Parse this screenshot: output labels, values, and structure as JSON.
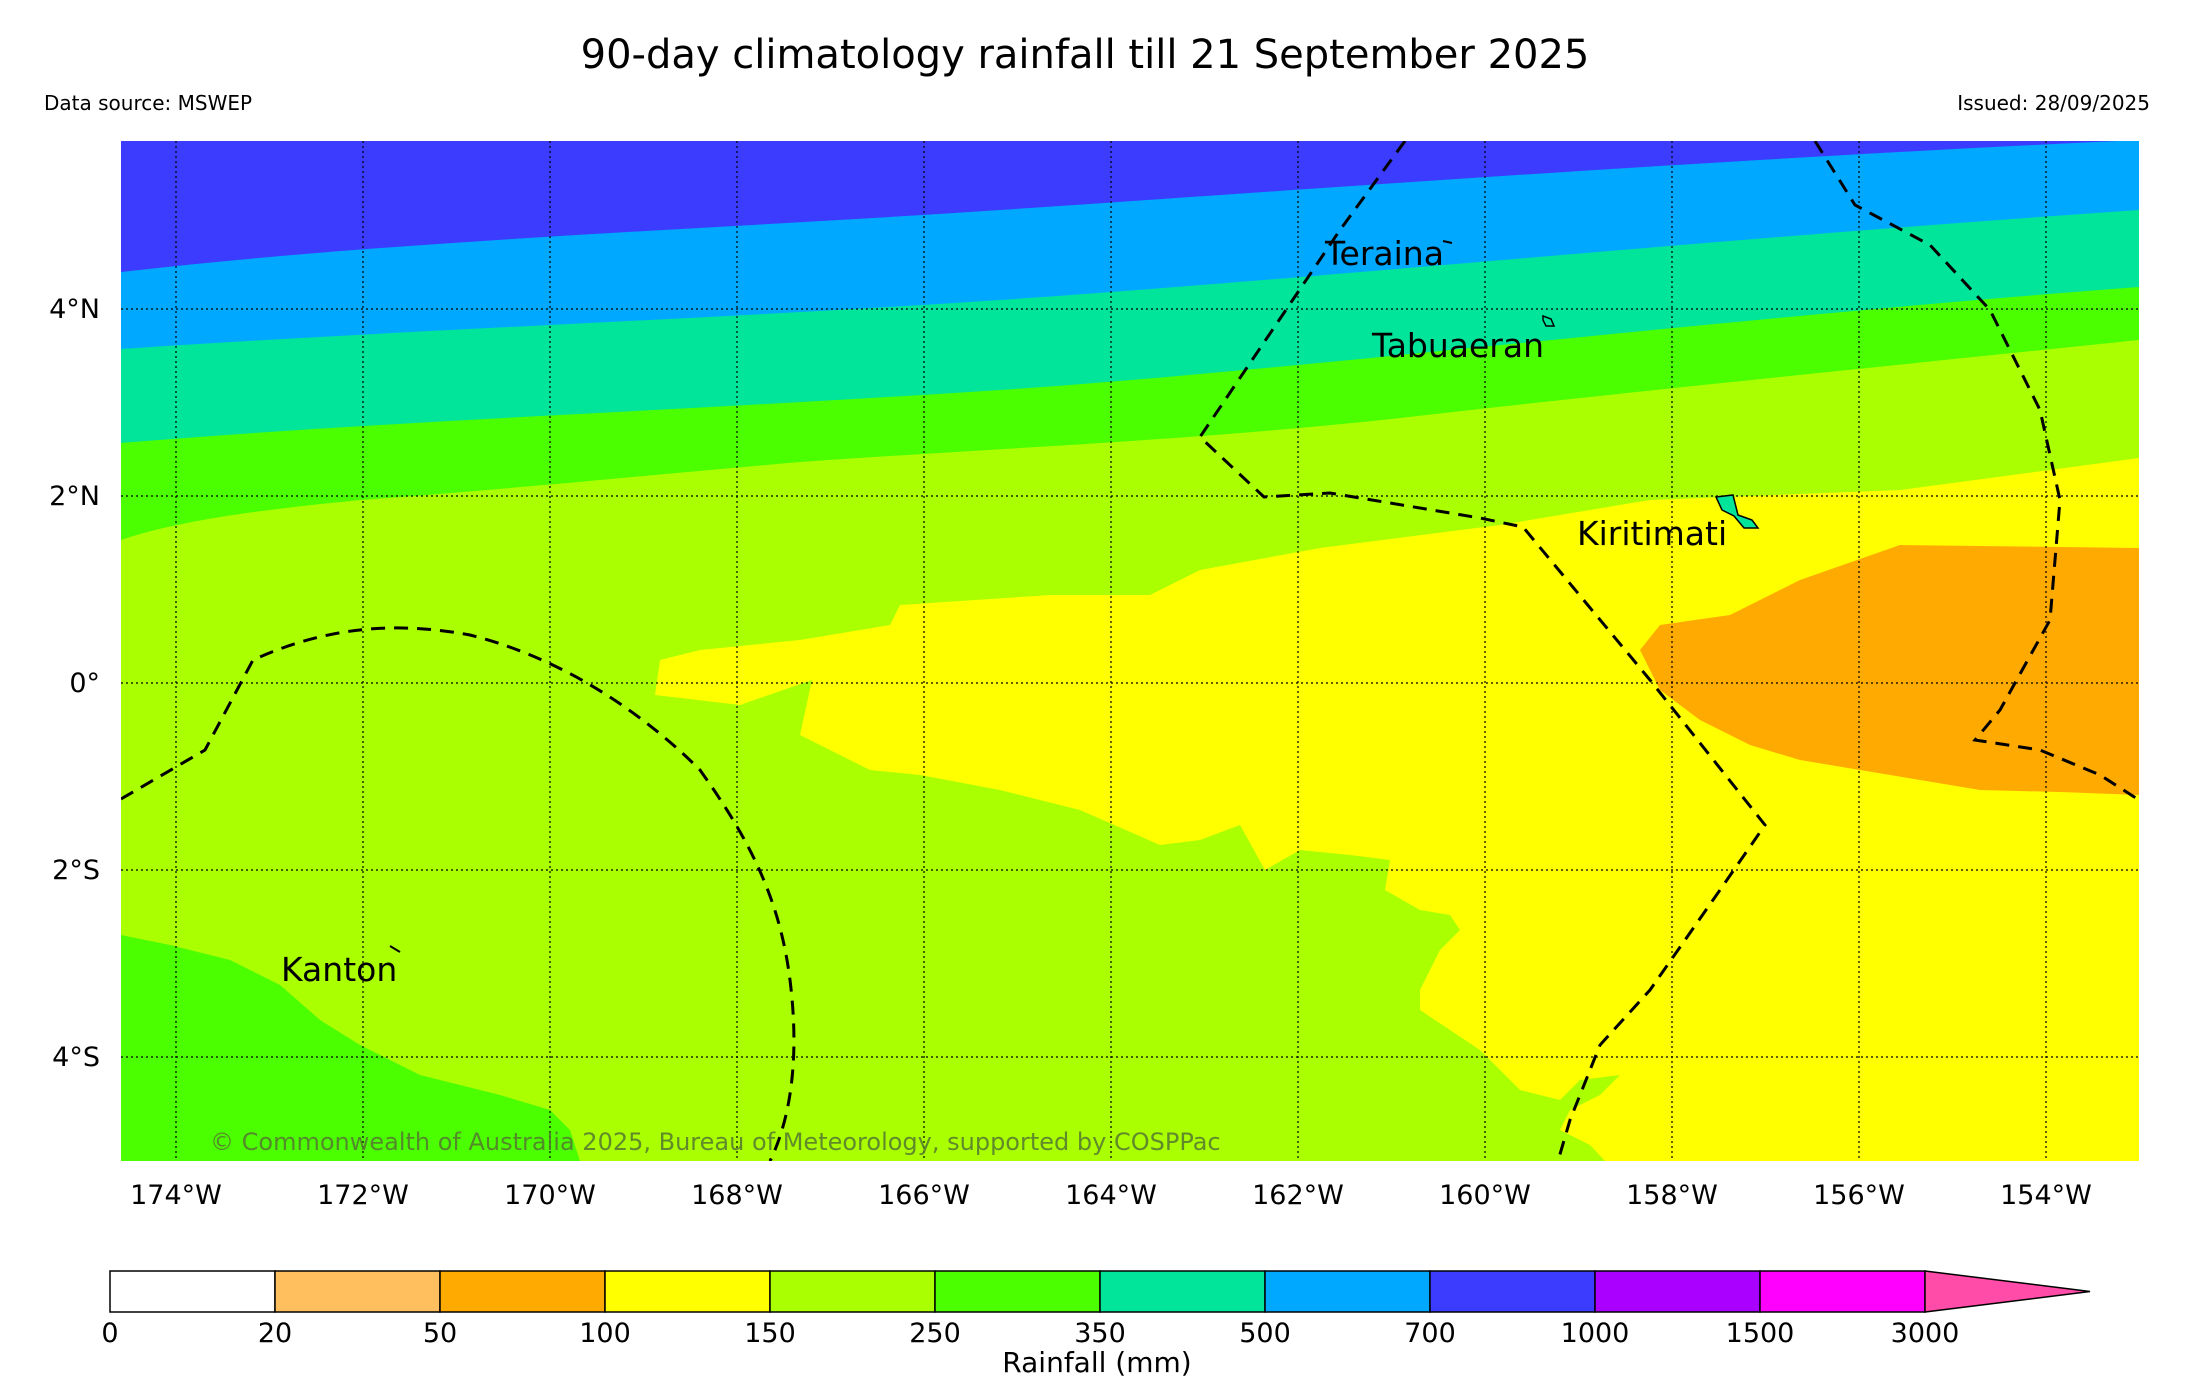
{
  "title": "90-day climatology rainfall till 21 September 2025",
  "source": "Data source: MSWEP",
  "issued": "Issued: 28/09/2025",
  "copyright": "© Commonwealth of Australia 2025, Bureau of Meteorology, supported by COSPPac",
  "lat_labels": [
    "4°N",
    "2°N",
    "0°",
    "2°S",
    "4°S"
  ],
  "lon_labels": [
    "174°W",
    "172°W",
    "170°W",
    "168°W",
    "166°W",
    "164°W",
    "162°W",
    "160°W",
    "158°W",
    "156°W",
    "154°W"
  ],
  "places": [
    "Teraina",
    "Tabuaeran",
    "Kiritimati",
    "Kanton"
  ],
  "colorbar": {
    "label": "Rainfall (mm)",
    "ticks": [
      "0",
      "20",
      "50",
      "100",
      "150",
      "250",
      "350",
      "500",
      "700",
      "1000",
      "1500",
      "3000"
    ],
    "colors": [
      "#ffffff",
      "#ffbf5f",
      "#ffaa00",
      "#ffff00",
      "#aaff00",
      "#4cff00",
      "#00e59a",
      "#00a8ff",
      "#3c3cff",
      "#aa00ff",
      "#ff00ff",
      "#ff4ca8"
    ]
  }
}
